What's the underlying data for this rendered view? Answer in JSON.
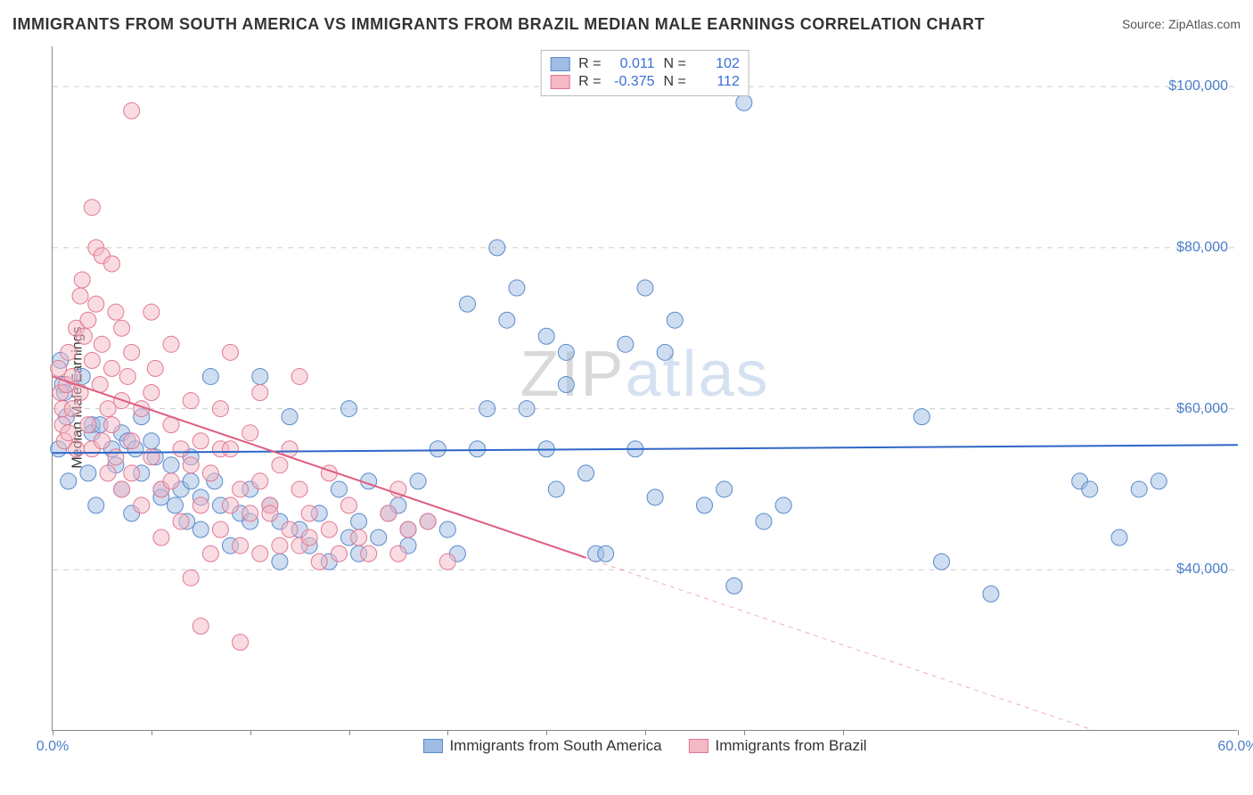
{
  "title": "IMMIGRANTS FROM SOUTH AMERICA VS IMMIGRANTS FROM BRAZIL MEDIAN MALE EARNINGS CORRELATION CHART",
  "source": "Source: ZipAtlas.com",
  "watermark_zip": "ZIP",
  "watermark_atlas": "atlas",
  "chart": {
    "type": "scatter",
    "ylabel": "Median Male Earnings",
    "xlim": [
      0,
      60
    ],
    "ylim": [
      20000,
      105000
    ],
    "xtick_label_left": "0.0%",
    "xtick_label_right": "60.0%",
    "xtick_positions_pct": [
      0,
      8.33,
      16.67,
      25,
      33.33,
      41.67,
      50,
      58.33,
      66.67,
      100
    ],
    "ytick_values": [
      40000,
      60000,
      80000,
      100000
    ],
    "ytick_labels": [
      "$40,000",
      "$60,000",
      "$80,000",
      "$100,000"
    ],
    "grid_color": "#cccccc",
    "axis_color": "#888888",
    "background_color": "#ffffff",
    "series": [
      {
        "name": "Immigrants from South America",
        "color_fill": "#9fbce4",
        "color_stroke": "#5a8acb",
        "fill_opacity": 0.5,
        "marker_radius": 9,
        "R": "0.011",
        "N": "102",
        "trend": {
          "y_at_x0": 54500,
          "y_at_x60": 55500,
          "solid_until_x": 60,
          "color": "#2e66c7",
          "width": 2
        },
        "points": [
          [
            0.3,
            55000
          ],
          [
            0.4,
            66000
          ],
          [
            0.5,
            63000
          ],
          [
            0.6,
            62000
          ],
          [
            0.7,
            59000
          ],
          [
            0.8,
            51000
          ],
          [
            1.5,
            64000
          ],
          [
            1.8,
            52000
          ],
          [
            2.0,
            58000
          ],
          [
            2.0,
            57000
          ],
          [
            2.2,
            48000
          ],
          [
            2.4,
            58000
          ],
          [
            3.0,
            55000
          ],
          [
            3.2,
            53000
          ],
          [
            3.5,
            57000
          ],
          [
            3.5,
            50000
          ],
          [
            3.8,
            56000
          ],
          [
            4.0,
            47000
          ],
          [
            4.2,
            55000
          ],
          [
            4.5,
            59000
          ],
          [
            4.5,
            52000
          ],
          [
            5.0,
            56000
          ],
          [
            5.2,
            54000
          ],
          [
            5.5,
            50000
          ],
          [
            5.5,
            49000
          ],
          [
            6.0,
            53000
          ],
          [
            6.2,
            48000
          ],
          [
            6.5,
            50000
          ],
          [
            6.8,
            46000
          ],
          [
            7.0,
            54000
          ],
          [
            7.0,
            51000
          ],
          [
            7.5,
            49000
          ],
          [
            7.5,
            45000
          ],
          [
            8.0,
            64000
          ],
          [
            8.2,
            51000
          ],
          [
            8.5,
            48000
          ],
          [
            9.0,
            43000
          ],
          [
            9.5,
            47000
          ],
          [
            10.0,
            50000
          ],
          [
            10.0,
            46000
          ],
          [
            10.5,
            64000
          ],
          [
            11.0,
            48000
          ],
          [
            11.5,
            46000
          ],
          [
            11.5,
            41000
          ],
          [
            12.0,
            59000
          ],
          [
            12.5,
            45000
          ],
          [
            13.0,
            43000
          ],
          [
            13.5,
            47000
          ],
          [
            14.0,
            41000
          ],
          [
            14.5,
            50000
          ],
          [
            15.0,
            44000
          ],
          [
            15.0,
            60000
          ],
          [
            15.5,
            46000
          ],
          [
            15.5,
            42000
          ],
          [
            16.0,
            51000
          ],
          [
            16.5,
            44000
          ],
          [
            17.0,
            47000
          ],
          [
            17.5,
            48000
          ],
          [
            18.0,
            45000
          ],
          [
            18.0,
            43000
          ],
          [
            18.5,
            51000
          ],
          [
            19.0,
            46000
          ],
          [
            19.5,
            55000
          ],
          [
            20.0,
            45000
          ],
          [
            20.5,
            42000
          ],
          [
            21.0,
            73000
          ],
          [
            21.5,
            55000
          ],
          [
            22.0,
            60000
          ],
          [
            22.5,
            80000
          ],
          [
            23.0,
            71000
          ],
          [
            23.5,
            75000
          ],
          [
            24.0,
            60000
          ],
          [
            25.0,
            55000
          ],
          [
            25.0,
            69000
          ],
          [
            25.5,
            50000
          ],
          [
            26.0,
            67000
          ],
          [
            26.0,
            63000
          ],
          [
            27.0,
            52000
          ],
          [
            27.5,
            42000
          ],
          [
            28.0,
            42000
          ],
          [
            29.0,
            68000
          ],
          [
            29.5,
            55000
          ],
          [
            30.0,
            75000
          ],
          [
            30.5,
            49000
          ],
          [
            31.0,
            67000
          ],
          [
            31.5,
            71000
          ],
          [
            33.0,
            48000
          ],
          [
            34.0,
            50000
          ],
          [
            34.5,
            38000
          ],
          [
            35.0,
            98000
          ],
          [
            36.0,
            46000
          ],
          [
            37.0,
            48000
          ],
          [
            44.0,
            59000
          ],
          [
            45.0,
            41000
          ],
          [
            47.5,
            37000
          ],
          [
            52.0,
            51000
          ],
          [
            52.5,
            50000
          ],
          [
            54.0,
            44000
          ],
          [
            55.0,
            50000
          ],
          [
            56.0,
            51000
          ]
        ]
      },
      {
        "name": "Immigrants from Brazil",
        "color_fill": "#f4b9c5",
        "color_stroke": "#e27893",
        "fill_opacity": 0.5,
        "marker_radius": 9,
        "R": "-0.375",
        "N": "112",
        "trend": {
          "y_at_x0": 64000,
          "y_at_x60": 14000,
          "solid_until_x": 27,
          "color": "#de5e80",
          "width": 2
        },
        "points": [
          [
            0.3,
            65000
          ],
          [
            0.4,
            62000
          ],
          [
            0.5,
            60000
          ],
          [
            0.5,
            58000
          ],
          [
            0.6,
            56000
          ],
          [
            0.7,
            63000
          ],
          [
            0.8,
            67000
          ],
          [
            0.8,
            57000
          ],
          [
            1.0,
            64000
          ],
          [
            1.0,
            60000
          ],
          [
            1.2,
            70000
          ],
          [
            1.2,
            55000
          ],
          [
            1.4,
            74000
          ],
          [
            1.4,
            62000
          ],
          [
            1.5,
            76000
          ],
          [
            1.6,
            69000
          ],
          [
            1.8,
            71000
          ],
          [
            1.8,
            58000
          ],
          [
            2.0,
            85000
          ],
          [
            2.0,
            66000
          ],
          [
            2.0,
            55000
          ],
          [
            2.2,
            80000
          ],
          [
            2.2,
            73000
          ],
          [
            2.4,
            63000
          ],
          [
            2.5,
            79000
          ],
          [
            2.5,
            68000
          ],
          [
            2.5,
            56000
          ],
          [
            2.8,
            60000
          ],
          [
            2.8,
            52000
          ],
          [
            3.0,
            78000
          ],
          [
            3.0,
            65000
          ],
          [
            3.0,
            58000
          ],
          [
            3.2,
            72000
          ],
          [
            3.2,
            54000
          ],
          [
            3.5,
            70000
          ],
          [
            3.5,
            61000
          ],
          [
            3.5,
            50000
          ],
          [
            3.8,
            64000
          ],
          [
            4.0,
            97000
          ],
          [
            4.0,
            67000
          ],
          [
            4.0,
            56000
          ],
          [
            4.0,
            52000
          ],
          [
            4.5,
            60000
          ],
          [
            4.5,
            48000
          ],
          [
            5.0,
            72000
          ],
          [
            5.0,
            62000
          ],
          [
            5.0,
            54000
          ],
          [
            5.2,
            65000
          ],
          [
            5.5,
            50000
          ],
          [
            5.5,
            44000
          ],
          [
            6.0,
            68000
          ],
          [
            6.0,
            58000
          ],
          [
            6.0,
            51000
          ],
          [
            6.5,
            55000
          ],
          [
            6.5,
            46000
          ],
          [
            7.0,
            61000
          ],
          [
            7.0,
            53000
          ],
          [
            7.0,
            39000
          ],
          [
            7.5,
            56000
          ],
          [
            7.5,
            48000
          ],
          [
            7.5,
            33000
          ],
          [
            8.0,
            52000
          ],
          [
            8.0,
            42000
          ],
          [
            8.5,
            60000
          ],
          [
            8.5,
            55000
          ],
          [
            8.5,
            45000
          ],
          [
            9.0,
            67000
          ],
          [
            9.0,
            55000
          ],
          [
            9.0,
            48000
          ],
          [
            9.5,
            50000
          ],
          [
            9.5,
            43000
          ],
          [
            9.5,
            31000
          ],
          [
            10.0,
            57000
          ],
          [
            10.0,
            47000
          ],
          [
            10.5,
            62000
          ],
          [
            10.5,
            51000
          ],
          [
            10.5,
            42000
          ],
          [
            11.0,
            48000
          ],
          [
            11.0,
            47000
          ],
          [
            11.5,
            53000
          ],
          [
            11.5,
            43000
          ],
          [
            12.0,
            55000
          ],
          [
            12.0,
            45000
          ],
          [
            12.5,
            64000
          ],
          [
            12.5,
            50000
          ],
          [
            12.5,
            43000
          ],
          [
            13.0,
            47000
          ],
          [
            13.0,
            44000
          ],
          [
            13.5,
            41000
          ],
          [
            14.0,
            52000
          ],
          [
            14.0,
            45000
          ],
          [
            14.5,
            42000
          ],
          [
            15.0,
            48000
          ],
          [
            15.5,
            44000
          ],
          [
            16.0,
            42000
          ],
          [
            17.0,
            47000
          ],
          [
            17.5,
            50000
          ],
          [
            17.5,
            42000
          ],
          [
            18.0,
            45000
          ],
          [
            19.0,
            46000
          ],
          [
            20.0,
            41000
          ]
        ]
      }
    ]
  },
  "legend_top": {
    "r_label": "R =",
    "n_label": "N ="
  }
}
